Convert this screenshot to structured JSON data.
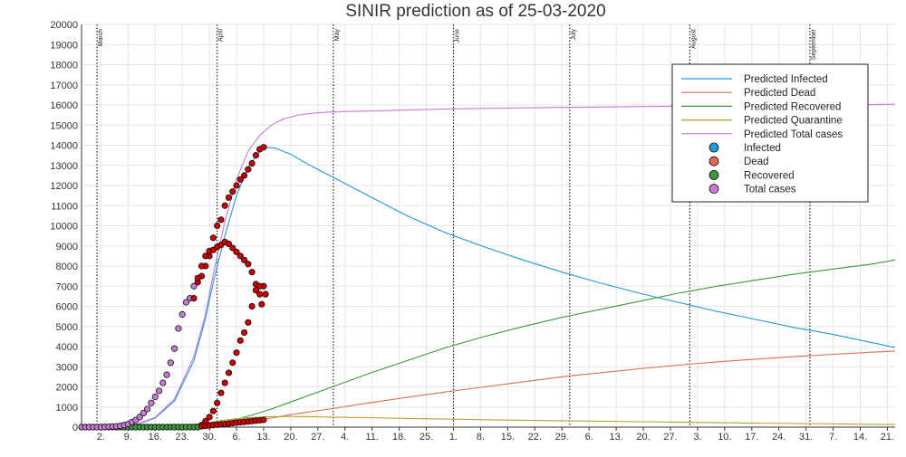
{
  "chart_data": {
    "type": "line",
    "title": "SINIR prediction as of 25-03-2020",
    "xlabel": "",
    "ylabel": "",
    "ylim": [
      0,
      20000
    ],
    "y_ticks": [
      0,
      1000,
      2000,
      3000,
      4000,
      5000,
      6000,
      7000,
      8000,
      9000,
      10000,
      11000,
      12000,
      13000,
      14000,
      15000,
      16000,
      17000,
      18000,
      19000,
      20000
    ],
    "x_range_days": [
      -4,
      206
    ],
    "x_ticks": [
      {
        "d": 1,
        "label": "2."
      },
      {
        "d": 8,
        "label": "9."
      },
      {
        "d": 15,
        "label": "16."
      },
      {
        "d": 22,
        "label": "23."
      },
      {
        "d": 29,
        "label": "30."
      },
      {
        "d": 36,
        "label": "6."
      },
      {
        "d": 43,
        "label": "13."
      },
      {
        "d": 50,
        "label": "20."
      },
      {
        "d": 57,
        "label": "27."
      },
      {
        "d": 64,
        "label": "4."
      },
      {
        "d": 71,
        "label": "11."
      },
      {
        "d": 78,
        "label": "18."
      },
      {
        "d": 85,
        "label": "25."
      },
      {
        "d": 92,
        "label": "1."
      },
      {
        "d": 99,
        "label": "8."
      },
      {
        "d": 106,
        "label": "15."
      },
      {
        "d": 113,
        "label": "22."
      },
      {
        "d": 120,
        "label": "29."
      },
      {
        "d": 127,
        "label": "6."
      },
      {
        "d": 134,
        "label": "13."
      },
      {
        "d": 141,
        "label": "20."
      },
      {
        "d": 148,
        "label": "27."
      },
      {
        "d": 155,
        "label": "3."
      },
      {
        "d": 162,
        "label": "10."
      },
      {
        "d": 169,
        "label": "17."
      },
      {
        "d": 176,
        "label": "24."
      },
      {
        "d": 183,
        "label": "31."
      },
      {
        "d": 190,
        "label": "7."
      },
      {
        "d": 197,
        "label": "14."
      },
      {
        "d": 204,
        "label": "21."
      }
    ],
    "month_lines": [
      {
        "d": 0,
        "label": "March"
      },
      {
        "d": 31,
        "label": "April"
      },
      {
        "d": 61,
        "label": "May"
      },
      {
        "d": 92,
        "label": "June"
      },
      {
        "d": 122,
        "label": "July"
      },
      {
        "d": 153,
        "label": "August"
      },
      {
        "d": 184,
        "label": "September"
      }
    ],
    "grid": true,
    "legend_position": "top-right",
    "series": [
      {
        "name": "Predicted Infected",
        "color": "#1f9ad6",
        "kind": "line",
        "x": [
          -4,
          5,
          10,
          15,
          20,
          25,
          28,
          30,
          33,
          36,
          39,
          42,
          44,
          46,
          50,
          55,
          60,
          65,
          70,
          80,
          90,
          100,
          110,
          120,
          130,
          140,
          150,
          160,
          170,
          180,
          190,
          200,
          206
        ],
        "y": [
          0,
          30,
          120,
          450,
          1300,
          3300,
          5400,
          7200,
          9500,
          11500,
          12900,
          13700,
          13900,
          13850,
          13550,
          13000,
          12500,
          12000,
          11500,
          10500,
          9650,
          8950,
          8300,
          7700,
          7150,
          6650,
          6200,
          5750,
          5350,
          4950,
          4600,
          4200,
          3950
        ]
      },
      {
        "name": "Predicted Dead",
        "color": "#e06b4e",
        "kind": "line",
        "x": [
          -4,
          20,
          28,
          32,
          36,
          40,
          45,
          50,
          60,
          70,
          80,
          90,
          100,
          110,
          120,
          130,
          140,
          150,
          160,
          170,
          180,
          190,
          200,
          206
        ],
        "y": [
          0,
          10,
          60,
          120,
          200,
          300,
          450,
          620,
          900,
          1200,
          1480,
          1750,
          2000,
          2250,
          2500,
          2700,
          2900,
          3080,
          3240,
          3380,
          3500,
          3620,
          3720,
          3780
        ]
      },
      {
        "name": "Predicted Recovered",
        "color": "#3a9a3a",
        "kind": "line",
        "x": [
          -4,
          20,
          28,
          32,
          36,
          40,
          45,
          50,
          60,
          70,
          80,
          90,
          100,
          110,
          120,
          130,
          140,
          150,
          160,
          170,
          180,
          190,
          200,
          206
        ],
        "y": [
          0,
          20,
          100,
          200,
          380,
          600,
          900,
          1250,
          1950,
          2650,
          3300,
          3950,
          4500,
          5000,
          5450,
          5850,
          6250,
          6650,
          7000,
          7300,
          7600,
          7850,
          8100,
          8300
        ]
      },
      {
        "name": "Predicted Quarantine",
        "color": "#b8a028",
        "kind": "line",
        "x": [
          -4,
          20,
          28,
          32,
          36,
          40,
          45,
          50,
          55,
          60,
          70,
          80,
          90,
          100,
          120,
          140,
          160,
          180,
          200,
          206
        ],
        "y": [
          0,
          50,
          200,
          330,
          420,
          480,
          520,
          530,
          520,
          500,
          470,
          430,
          400,
          370,
          320,
          270,
          220,
          180,
          140,
          130
        ],
        "note": ""
      },
      {
        "name": "Predicted Total cases",
        "color": "#c77ad6",
        "kind": "line",
        "x": [
          -4,
          5,
          10,
          15,
          20,
          25,
          28,
          30,
          33,
          36,
          39,
          42,
          45,
          48,
          52,
          56,
          60,
          70,
          80,
          90,
          100,
          120,
          140,
          160,
          180,
          200,
          206
        ],
        "y": [
          0,
          30,
          130,
          480,
          1400,
          3500,
          5600,
          7600,
          10200,
          12300,
          13700,
          14500,
          15000,
          15300,
          15500,
          15600,
          15650,
          15700,
          15750,
          15800,
          15830,
          15880,
          15920,
          15960,
          15990,
          16020,
          16040
        ]
      },
      {
        "name": "Infected",
        "color": "#cc0000",
        "kind": "scatter",
        "x": [
          -4,
          -3,
          -2,
          -1,
          0,
          1,
          2,
          3,
          4,
          5,
          6,
          7,
          8,
          9,
          10,
          11,
          12,
          13,
          14,
          15,
          16,
          17,
          18,
          19,
          20,
          21,
          22,
          23,
          24,
          25,
          26,
          27,
          28,
          29,
          30,
          31,
          32,
          33,
          34,
          35,
          36,
          37,
          38,
          39,
          40,
          41,
          42,
          43,
          44
        ],
        "y": [
          0,
          0,
          0,
          0,
          0,
          0,
          0,
          0,
          0,
          0,
          0,
          0,
          0,
          0,
          0,
          0,
          0,
          0,
          0,
          0,
          0,
          0,
          0,
          0,
          0,
          0,
          0,
          0,
          0,
          0,
          0,
          0,
          0,
          0,
          0,
          0,
          0,
          0,
          0,
          0,
          0,
          0,
          0,
          0,
          0,
          0,
          0,
          0,
          0
        ],
        "note_overlay": "overlay"
      },
      {
        "name": "Dead",
        "color": "#e06b4e",
        "kind": "scatter",
        "x": [],
        "y": []
      },
      {
        "name": "Recovered",
        "color": "#3a9a3a",
        "kind": "scatter",
        "x": [],
        "y": []
      },
      {
        "name": "Total cases",
        "color": "#c77ad6",
        "kind": "scatter",
        "x": [],
        "y": []
      }
    ],
    "observed": {
      "total_purple": {
        "x": [
          -4,
          -3,
          -2,
          -1,
          0,
          1,
          2,
          3,
          4,
          5,
          6,
          7,
          8,
          9,
          10,
          11,
          12,
          13,
          14,
          15,
          16,
          17,
          18,
          19,
          20,
          21,
          22,
          23,
          24,
          25
        ],
        "y": [
          0,
          0,
          0,
          0,
          0,
          0,
          10,
          20,
          30,
          40,
          60,
          100,
          150,
          250,
          350,
          500,
          700,
          900,
          1200,
          1500,
          1800,
          2200,
          2600,
          3200,
          3900,
          4900,
          5600,
          6200,
          6400,
          7000
        ]
      },
      "total_red": {
        "x": [
          25,
          26,
          27,
          28,
          29,
          30,
          31,
          32,
          33,
          34,
          35,
          36,
          37,
          38,
          39,
          40,
          41,
          42,
          43
        ],
        "y": [
          6400,
          7200,
          7500,
          8000,
          8500,
          9400,
          10000,
          10300,
          11000,
          11400,
          11700,
          12000,
          12300,
          12500,
          12800,
          13100,
          13500,
          13800,
          13900
        ]
      },
      "infected_red": {
        "x": [
          26,
          27,
          28,
          29,
          30,
          31,
          32,
          33,
          34,
          35,
          36,
          37,
          38,
          39,
          40,
          41,
          42,
          42.5,
          43,
          43.5
        ],
        "y": [
          7400,
          8000,
          8500,
          8750,
          8800,
          8950,
          9050,
          9200,
          9100,
          8900,
          8700,
          8500,
          8300,
          8100,
          7700,
          7100,
          6600,
          6100,
          7000,
          6600
        ]
      },
      "recovered_red": {
        "x": [
          27,
          28,
          29,
          30,
          31,
          32,
          33,
          34,
          35,
          36,
          37,
          38,
          39,
          40,
          41,
          42
        ],
        "y": [
          100,
          300,
          500,
          800,
          1200,
          1700,
          2200,
          2700,
          3200,
          3700,
          4300,
          4700,
          5200,
          6000,
          6800,
          7000
        ]
      },
      "dead_red": {
        "x": [
          27,
          28,
          29,
          30,
          31,
          32,
          33,
          34,
          35,
          36,
          37,
          38,
          39,
          40,
          41,
          42,
          43
        ],
        "y": [
          40,
          60,
          80,
          100,
          120,
          140,
          160,
          180,
          200,
          220,
          240,
          260,
          280,
          300,
          320,
          340,
          360
        ]
      },
      "dead_orange_flat": {
        "x": [
          -4,
          -3,
          -2,
          -1,
          0,
          1,
          2,
          3,
          4,
          5,
          6,
          7,
          8,
          9,
          10,
          11,
          12,
          13,
          14,
          15,
          16,
          17,
          18,
          19,
          20,
          21,
          22,
          23,
          24,
          25,
          26
        ],
        "y": [
          0,
          0,
          0,
          0,
          0,
          0,
          0,
          0,
          0,
          0,
          0,
          0,
          0,
          0,
          0,
          0,
          0,
          0,
          0,
          0,
          0,
          0,
          0,
          0,
          0,
          0,
          0,
          0,
          0,
          0,
          0
        ]
      },
      "recovered_green_flat": {
        "x": [
          6,
          7,
          8,
          9,
          10,
          11,
          12,
          13,
          14,
          15,
          16,
          17,
          18,
          19,
          20,
          21,
          22,
          23,
          24,
          25,
          26
        ],
        "y": [
          0,
          0,
          0,
          0,
          0,
          0,
          0,
          0,
          0,
          0,
          0,
          0,
          0,
          0,
          0,
          0,
          0,
          0,
          0,
          0,
          0
        ]
      }
    },
    "legend": [
      {
        "label": "Predicted Infected",
        "kind": "line",
        "color": "#1f9ad6"
      },
      {
        "label": "Predicted Dead",
        "kind": "line",
        "color": "#e06b4e"
      },
      {
        "label": "Predicted Recovered",
        "kind": "line",
        "color": "#3a9a3a"
      },
      {
        "label": "Predicted Quarantine",
        "kind": "line",
        "color": "#b8a028"
      },
      {
        "label": "Predicted Total cases",
        "kind": "line",
        "color": "#c77ad6"
      },
      {
        "label": "Infected",
        "kind": "marker",
        "color": "#1f9ad6"
      },
      {
        "label": "Dead",
        "kind": "marker",
        "color": "#e06b4e"
      },
      {
        "label": "Recovered",
        "kind": "marker",
        "color": "#3a9a3a"
      },
      {
        "label": "Total cases",
        "kind": "marker",
        "color": "#c77ad6"
      }
    ]
  }
}
